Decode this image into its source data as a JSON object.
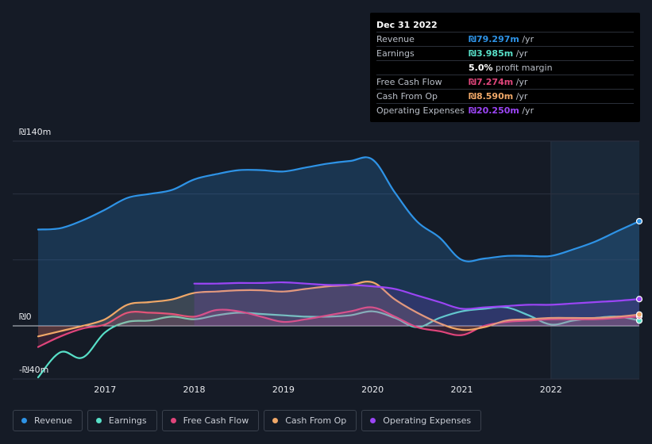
{
  "tooltip": {
    "title": "Dec 31 2022",
    "rows": [
      {
        "label": "Revenue",
        "value": "₪79.297m",
        "unit": "/yr",
        "color": "#2e93e6"
      },
      {
        "label": "Earnings",
        "value": "₪3.985m",
        "unit": "/yr",
        "color": "#58e0c8"
      },
      {
        "label": "",
        "value": "5.0%",
        "unit": "profit margin",
        "color": "#ffffff"
      },
      {
        "label": "Free Cash Flow",
        "value": "₪7.274m",
        "unit": "/yr",
        "color": "#e0457b"
      },
      {
        "label": "Cash From Op",
        "value": "₪8.590m",
        "unit": "/yr",
        "color": "#f0a868"
      },
      {
        "label": "Operating Expenses",
        "value": "₪20.250m",
        "unit": "/yr",
        "color": "#9b45f5"
      }
    ]
  },
  "legend": [
    {
      "label": "Revenue",
      "color": "#2e93e6"
    },
    {
      "label": "Earnings",
      "color": "#58e0c8"
    },
    {
      "label": "Free Cash Flow",
      "color": "#e0457b"
    },
    {
      "label": "Cash From Op",
      "color": "#f0a868"
    },
    {
      "label": "Operating Expenses",
      "color": "#9b45f5"
    }
  ],
  "chart_data": {
    "type": "line",
    "y_tick_labels": [
      "₪140m",
      "₪0",
      "-₪40m"
    ],
    "x_tick_labels": [
      "2017",
      "2018",
      "2019",
      "2020",
      "2021",
      "2022"
    ],
    "x_ticks": [
      2017,
      2018,
      2019,
      2020,
      2021,
      2022
    ],
    "xlim": [
      2016.25,
      2022.99
    ],
    "ylim": [
      -40,
      140
    ],
    "forecast_start": 2022.0,
    "series": [
      {
        "name": "Revenue",
        "color": "#2e93e6",
        "fill": true,
        "x_start": 2016.25,
        "points": [
          [
            2016.25,
            73
          ],
          [
            2016.5,
            74
          ],
          [
            2016.75,
            80
          ],
          [
            2017.0,
            88
          ],
          [
            2017.25,
            97
          ],
          [
            2017.5,
            100
          ],
          [
            2017.75,
            103
          ],
          [
            2018.0,
            111
          ],
          [
            2018.25,
            115
          ],
          [
            2018.5,
            118
          ],
          [
            2018.75,
            118
          ],
          [
            2019.0,
            117
          ],
          [
            2019.25,
            120
          ],
          [
            2019.5,
            123
          ],
          [
            2019.75,
            125
          ],
          [
            2020.0,
            126
          ],
          [
            2020.25,
            101
          ],
          [
            2020.5,
            79
          ],
          [
            2020.75,
            67
          ],
          [
            2021.0,
            50
          ],
          [
            2021.25,
            51
          ],
          [
            2021.5,
            53
          ],
          [
            2021.75,
            53
          ],
          [
            2022.0,
            53
          ],
          [
            2022.25,
            58
          ],
          [
            2022.5,
            64
          ],
          [
            2022.75,
            72
          ],
          [
            2022.99,
            79.3
          ]
        ]
      },
      {
        "name": "Earnings",
        "color": "#58e0c8",
        "fill": false,
        "x_start": 2016.25,
        "points": [
          [
            2016.25,
            -39
          ],
          [
            2016.5,
            -20
          ],
          [
            2016.75,
            -24
          ],
          [
            2017.0,
            -5
          ],
          [
            2017.25,
            3
          ],
          [
            2017.5,
            4
          ],
          [
            2017.75,
            7
          ],
          [
            2018.0,
            5
          ],
          [
            2018.25,
            8
          ],
          [
            2018.5,
            10
          ],
          [
            2018.75,
            9
          ],
          [
            2019.0,
            8
          ],
          [
            2019.25,
            7
          ],
          [
            2019.5,
            7
          ],
          [
            2019.75,
            8
          ],
          [
            2020.0,
            11
          ],
          [
            2020.25,
            6
          ],
          [
            2020.5,
            -1
          ],
          [
            2020.75,
            6
          ],
          [
            2021.0,
            11
          ],
          [
            2021.25,
            13
          ],
          [
            2021.5,
            14
          ],
          [
            2021.75,
            8
          ],
          [
            2022.0,
            1
          ],
          [
            2022.25,
            4
          ],
          [
            2022.5,
            6
          ],
          [
            2022.75,
            7
          ],
          [
            2022.99,
            4
          ]
        ]
      },
      {
        "name": "Free Cash Flow",
        "color": "#e0457b",
        "fill": true,
        "x_start": 2016.25,
        "points": [
          [
            2016.25,
            -16
          ],
          [
            2016.5,
            -8
          ],
          [
            2016.75,
            -2
          ],
          [
            2017.0,
            1
          ],
          [
            2017.25,
            10
          ],
          [
            2017.5,
            10
          ],
          [
            2017.75,
            9
          ],
          [
            2018.0,
            7
          ],
          [
            2018.25,
            12
          ],
          [
            2018.5,
            11
          ],
          [
            2018.75,
            7
          ],
          [
            2019.0,
            3
          ],
          [
            2019.25,
            5
          ],
          [
            2019.5,
            8
          ],
          [
            2019.75,
            11
          ],
          [
            2020.0,
            14
          ],
          [
            2020.25,
            7
          ],
          [
            2020.5,
            -1
          ],
          [
            2020.75,
            -4
          ],
          [
            2021.0,
            -7
          ],
          [
            2021.25,
            0
          ],
          [
            2021.5,
            3
          ],
          [
            2021.75,
            4
          ],
          [
            2022.0,
            5
          ],
          [
            2022.25,
            5
          ],
          [
            2022.5,
            5
          ],
          [
            2022.75,
            6
          ],
          [
            2022.99,
            7.3
          ]
        ]
      },
      {
        "name": "Cash From Op",
        "color": "#f0a868",
        "fill": true,
        "x_start": 2016.25,
        "points": [
          [
            2016.25,
            -8
          ],
          [
            2016.5,
            -4
          ],
          [
            2016.75,
            0
          ],
          [
            2017.0,
            5
          ],
          [
            2017.25,
            16
          ],
          [
            2017.5,
            18
          ],
          [
            2017.75,
            20
          ],
          [
            2018.0,
            25
          ],
          [
            2018.25,
            26
          ],
          [
            2018.5,
            27
          ],
          [
            2018.75,
            27
          ],
          [
            2019.0,
            26
          ],
          [
            2019.25,
            28
          ],
          [
            2019.5,
            30
          ],
          [
            2019.75,
            31
          ],
          [
            2020.0,
            33
          ],
          [
            2020.25,
            20
          ],
          [
            2020.5,
            10
          ],
          [
            2020.75,
            2
          ],
          [
            2021.0,
            -3
          ],
          [
            2021.25,
            -1
          ],
          [
            2021.5,
            4
          ],
          [
            2021.75,
            5
          ],
          [
            2022.0,
            6
          ],
          [
            2022.25,
            6
          ],
          [
            2022.5,
            6
          ],
          [
            2022.75,
            7
          ],
          [
            2022.99,
            8.6
          ]
        ]
      },
      {
        "name": "Operating Expenses",
        "color": "#9b45f5",
        "fill": true,
        "x_start": 2018.0,
        "points": [
          [
            2018.0,
            32
          ],
          [
            2018.25,
            32
          ],
          [
            2018.5,
            32.5
          ],
          [
            2018.75,
            32.5
          ],
          [
            2019.0,
            33
          ],
          [
            2019.25,
            32
          ],
          [
            2019.5,
            31
          ],
          [
            2019.75,
            31
          ],
          [
            2020.0,
            30
          ],
          [
            2020.25,
            28
          ],
          [
            2020.5,
            23
          ],
          [
            2020.75,
            18
          ],
          [
            2021.0,
            13
          ],
          [
            2021.25,
            14
          ],
          [
            2021.5,
            15
          ],
          [
            2021.75,
            16
          ],
          [
            2022.0,
            16
          ],
          [
            2022.25,
            17
          ],
          [
            2022.5,
            18
          ],
          [
            2022.75,
            19
          ],
          [
            2022.99,
            20.3
          ]
        ]
      }
    ]
  }
}
